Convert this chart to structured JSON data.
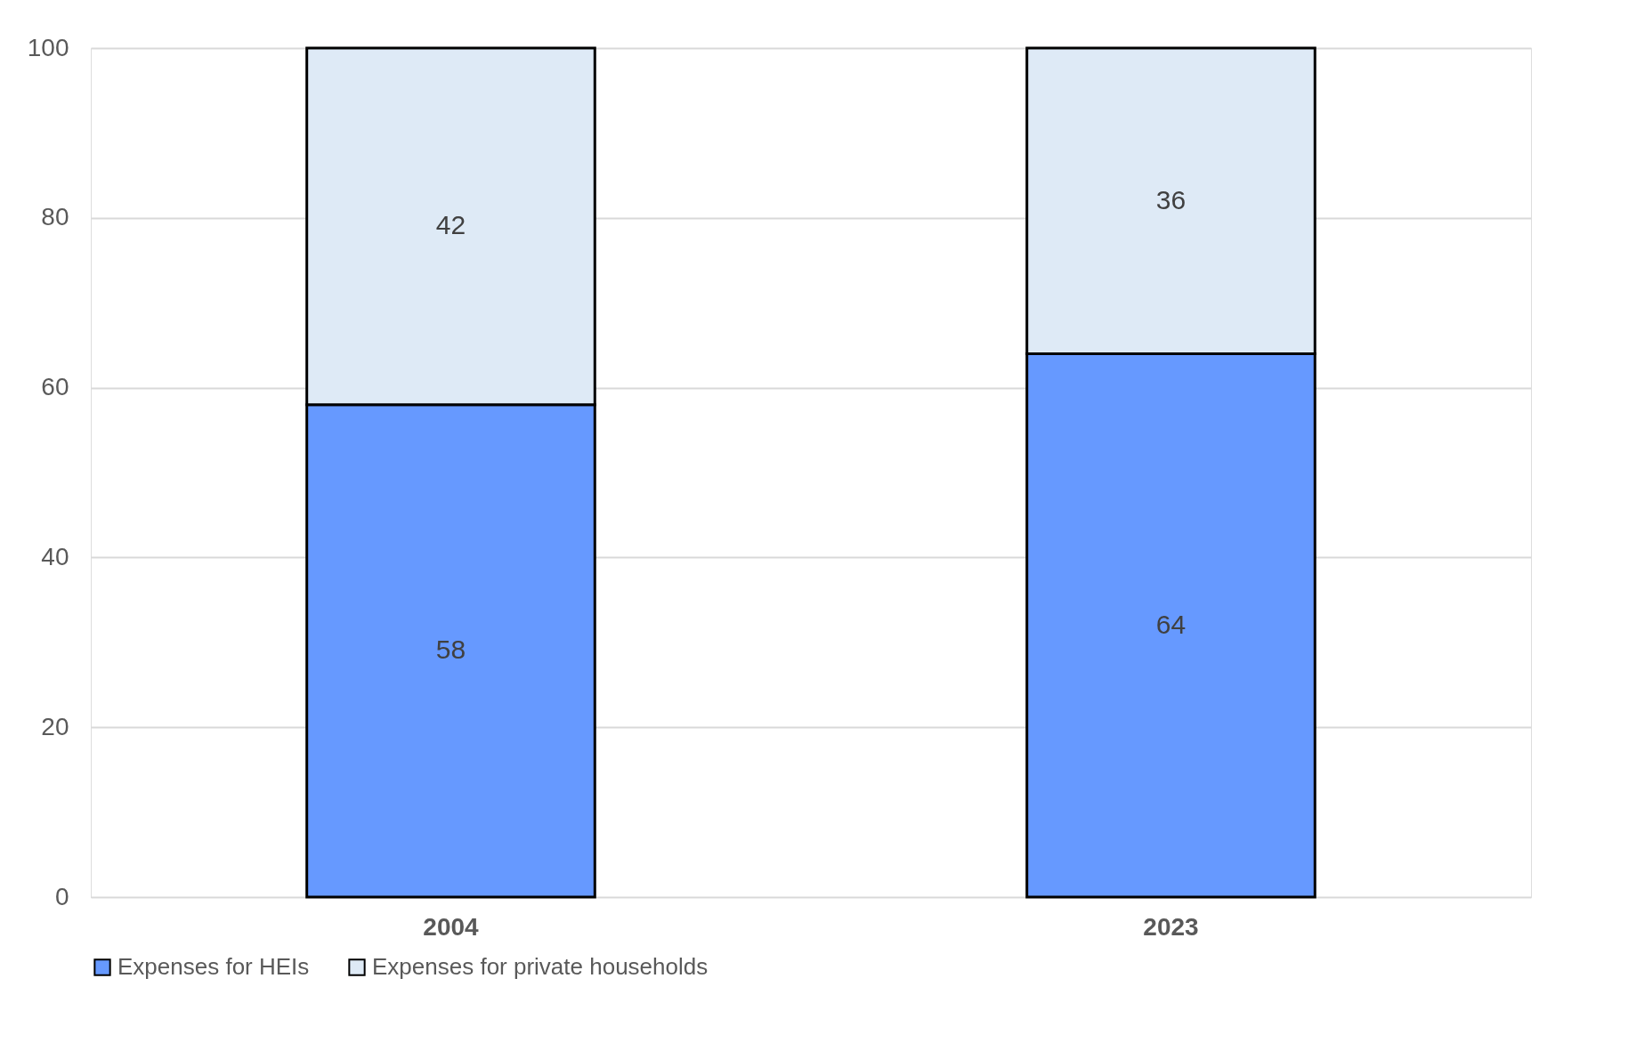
{
  "chart_data": {
    "type": "bar",
    "stacked": true,
    "categories": [
      "2004",
      "2023"
    ],
    "series": [
      {
        "name": "Expenses for HEIs",
        "color": "#6699ff",
        "values": [
          58,
          64
        ]
      },
      {
        "name": "Expenses for private households",
        "color": "#deeaf6",
        "values": [
          42,
          36
        ]
      }
    ],
    "ylim": [
      0,
      100
    ],
    "yticks": [
      0,
      20,
      40,
      60,
      80,
      100
    ],
    "grid": "y",
    "legend": "bottom",
    "data_labels": true
  }
}
